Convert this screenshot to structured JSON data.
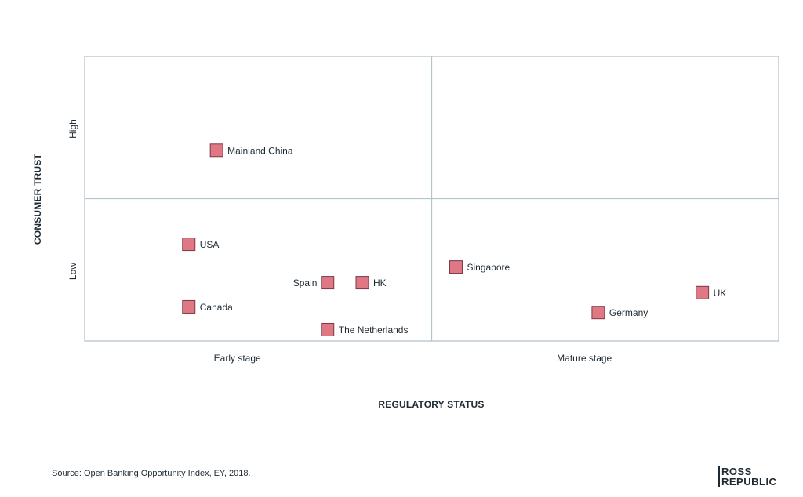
{
  "chart_data": {
    "type": "scatter",
    "xlabel": "REGULATORY STATUS",
    "ylabel": "CONSUMER TRUST",
    "x_categories": [
      "Early stage",
      "Mature stage"
    ],
    "y_categories": [
      "Low",
      "High"
    ],
    "xlim": [
      0,
      2
    ],
    "ylim": [
      0,
      2
    ],
    "grid": true,
    "marker_color": "#e07785",
    "points": [
      {
        "label": "Mainland China",
        "x": 0.38,
        "y": 1.34
      },
      {
        "label": "USA",
        "x": 0.3,
        "y": 0.68
      },
      {
        "label": "Spain",
        "x": 0.7,
        "y": 0.41
      },
      {
        "label": "HK",
        "x": 0.8,
        "y": 0.41
      },
      {
        "label": "Canada",
        "x": 0.3,
        "y": 0.24
      },
      {
        "label": "The Netherlands",
        "x": 0.7,
        "y": 0.08
      },
      {
        "label": "Singapore",
        "x": 1.07,
        "y": 0.52
      },
      {
        "label": "UK",
        "x": 1.78,
        "y": 0.34
      },
      {
        "label": "Germany",
        "x": 1.48,
        "y": 0.2
      }
    ]
  },
  "footer": {
    "source": "Source: Open Banking Opportunity Index, EY, 2018.",
    "logo_line1": "ROSS",
    "logo_line2": "REPUBLIC"
  }
}
